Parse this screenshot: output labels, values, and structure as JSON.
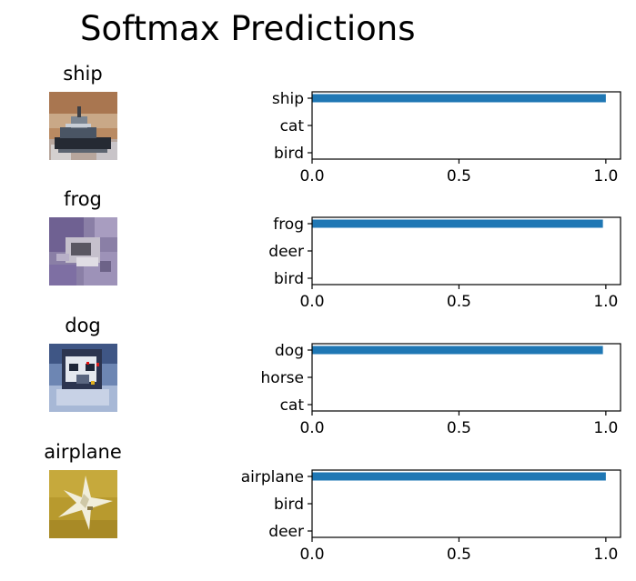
{
  "page": {
    "title": "Softmax Predictions"
  },
  "colors": {
    "bar": "#1f77b4",
    "axis": "#000000",
    "background": "#ffffff"
  },
  "chart_data": [
    {
      "type": "bar",
      "orientation": "horizontal",
      "title": "ship",
      "categories": [
        "ship",
        "cat",
        "bird"
      ],
      "values": [
        1.0,
        0.0,
        0.0
      ],
      "xlim": [
        0,
        1.05
      ],
      "xticks": [
        "0.0",
        "0.5",
        "1.0"
      ],
      "grid": false,
      "thumbnail": "ship-image"
    },
    {
      "type": "bar",
      "orientation": "horizontal",
      "title": "frog",
      "categories": [
        "frog",
        "deer",
        "bird"
      ],
      "values": [
        0.99,
        0.0,
        0.0
      ],
      "xlim": [
        0,
        1.05
      ],
      "xticks": [
        "0.0",
        "0.5",
        "1.0"
      ],
      "grid": false,
      "thumbnail": "frog-image"
    },
    {
      "type": "bar",
      "orientation": "horizontal",
      "title": "dog",
      "categories": [
        "dog",
        "horse",
        "cat"
      ],
      "values": [
        0.99,
        0.0,
        0.0
      ],
      "xlim": [
        0,
        1.05
      ],
      "xticks": [
        "0.0",
        "0.5",
        "1.0"
      ],
      "grid": false,
      "thumbnail": "dog-image"
    },
    {
      "type": "bar",
      "orientation": "horizontal",
      "title": "airplane",
      "categories": [
        "airplane",
        "bird",
        "deer"
      ],
      "values": [
        1.0,
        0.0,
        0.0
      ],
      "xlim": [
        0,
        1.05
      ],
      "xticks": [
        "0.0",
        "0.5",
        "1.0"
      ],
      "grid": false,
      "thumbnail": "airplane-image"
    }
  ]
}
